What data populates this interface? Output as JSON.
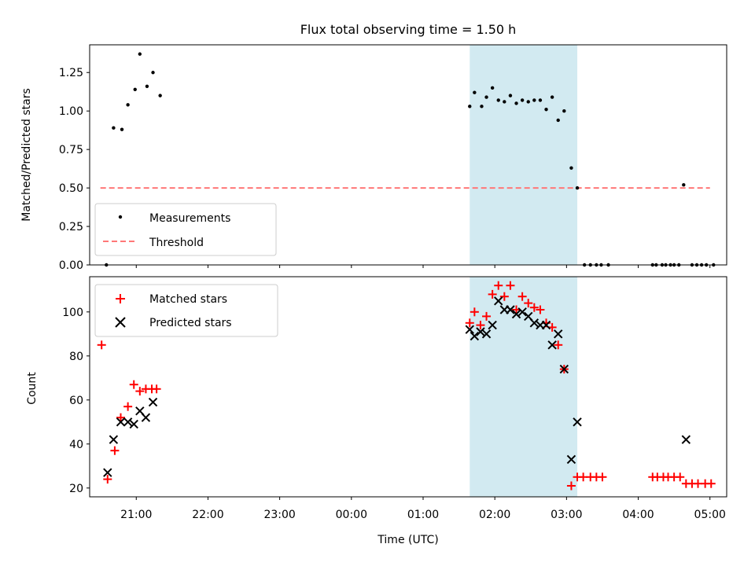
{
  "figure": {
    "title": "Flux total observing time = 1.50 h",
    "xlabel": "Time (UTC)",
    "x_tick_labels": [
      "21:00",
      "22:00",
      "23:00",
      "00:00",
      "01:00",
      "02:00",
      "03:00",
      "04:00",
      "05:00"
    ]
  },
  "chart_data": [
    {
      "type": "scatter",
      "panel": "top",
      "title": "Flux total observing time = 1.50 h",
      "ylabel": "Matched/Predicted stars",
      "xlim": [
        "20:21",
        "05:14"
      ],
      "ylim": [
        0,
        1.43
      ],
      "yticks": [
        0.0,
        0.25,
        0.5,
        0.75,
        1.0,
        1.25
      ],
      "ytick_labels": [
        "0.00",
        "0.25",
        "0.50",
        "0.75",
        "1.00",
        "1.25"
      ],
      "legend": {
        "placement": "lower-left",
        "entries": [
          "Measurements",
          "Threshold"
        ]
      },
      "shaded_span": {
        "x": [
          "01:39",
          "03:09"
        ],
        "color": "#add8e6"
      },
      "series": [
        {
          "name": "Measurements",
          "marker": "dot",
          "color": "#000000",
          "x": [
            "20:35",
            "20:41",
            "20:48",
            "20:53",
            "20:59",
            "21:03",
            "21:09",
            "21:14",
            "21:20",
            "01:39",
            "01:43",
            "01:49",
            "01:53",
            "01:58",
            "02:03",
            "02:08",
            "02:13",
            "02:18",
            "02:23",
            "02:28",
            "02:33",
            "02:38",
            "02:43",
            "02:48",
            "02:53",
            "02:58",
            "03:04",
            "03:09",
            "03:15",
            "03:20",
            "03:25",
            "03:29",
            "03:35",
            "04:12",
            "04:15",
            "04:20",
            "04:23",
            "04:27",
            "04:30",
            "04:34",
            "04:38",
            "04:45",
            "04:49",
            "04:53",
            "04:57",
            "05:03"
          ],
          "y": [
            0.0,
            0.89,
            0.88,
            1.04,
            1.14,
            1.37,
            1.16,
            1.25,
            1.1,
            1.03,
            1.12,
            1.03,
            1.09,
            1.15,
            1.07,
            1.06,
            1.1,
            1.05,
            1.07,
            1.06,
            1.07,
            1.07,
            1.01,
            1.09,
            0.94,
            1.0,
            0.63,
            0.5,
            0.0,
            0.0,
            0.0,
            0.0,
            0.0,
            0.0,
            0.0,
            0.0,
            0.0,
            0.0,
            0.0,
            0.0,
            0.52,
            0.0,
            0.0,
            0.0,
            0.0,
            0.0
          ]
        },
        {
          "name": "Threshold",
          "style": "dashed",
          "color": "#ff7777",
          "x": [
            "20:30",
            "05:00"
          ],
          "y": [
            0.5,
            0.5
          ]
        }
      ]
    },
    {
      "type": "scatter",
      "panel": "bottom",
      "ylabel": "Count",
      "xlabel": "Time (UTC)",
      "xlim": [
        "20:21",
        "05:14"
      ],
      "ylim": [
        16,
        116
      ],
      "yticks": [
        20,
        40,
        60,
        80,
        100
      ],
      "legend": {
        "placement": "top-left",
        "entries": [
          "Matched stars",
          "Predicted stars"
        ]
      },
      "shaded_span": {
        "x": [
          "01:39",
          "03:09"
        ],
        "color": "#add8e6"
      },
      "series": [
        {
          "name": "Matched stars",
          "marker": "plus",
          "color": "#ff0000",
          "x": [
            "20:31",
            "20:36",
            "20:42",
            "20:47",
            "20:53",
            "20:58",
            "21:03",
            "21:08",
            "21:13",
            "21:17",
            "01:39",
            "01:43",
            "01:48",
            "01:53",
            "01:58",
            "02:03",
            "02:08",
            "02:13",
            "02:18",
            "02:23",
            "02:28",
            "02:33",
            "02:38",
            "02:43",
            "02:48",
            "02:53",
            "02:58",
            "03:04",
            "03:09",
            "03:14",
            "03:20",
            "03:25",
            "03:30",
            "04:12",
            "04:16",
            "04:21",
            "04:25",
            "04:30",
            "04:35",
            "04:40",
            "04:45",
            "04:50",
            "04:56",
            "05:01"
          ],
          "y": [
            85,
            24,
            37,
            52,
            57,
            67,
            64,
            65,
            65,
            65,
            95,
            100,
            94,
            98,
            108,
            112,
            107,
            112,
            101,
            107,
            104,
            102,
            101,
            95,
            93,
            85,
            74,
            21,
            25,
            25,
            25,
            25,
            25,
            25,
            25,
            25,
            25,
            25,
            25,
            22,
            22,
            22,
            22,
            22
          ]
        },
        {
          "name": "Predicted stars",
          "marker": "x",
          "color": "#000000",
          "x": [
            "20:36",
            "20:41",
            "20:47",
            "20:53",
            "20:58",
            "21:03",
            "21:08",
            "21:14",
            "01:39",
            "01:43",
            "01:48",
            "01:53",
            "01:58",
            "02:03",
            "02:08",
            "02:13",
            "02:18",
            "02:23",
            "02:28",
            "02:33",
            "02:38",
            "02:43",
            "02:48",
            "02:53",
            "02:58",
            "03:04",
            "03:09",
            "04:40"
          ],
          "y": [
            27,
            42,
            50,
            50,
            49,
            55,
            52,
            59,
            92,
            89,
            91,
            90,
            94,
            105,
            101,
            101,
            99,
            100,
            98,
            95,
            94,
            94,
            85,
            90,
            74,
            33,
            50,
            42
          ]
        }
      ]
    }
  ]
}
